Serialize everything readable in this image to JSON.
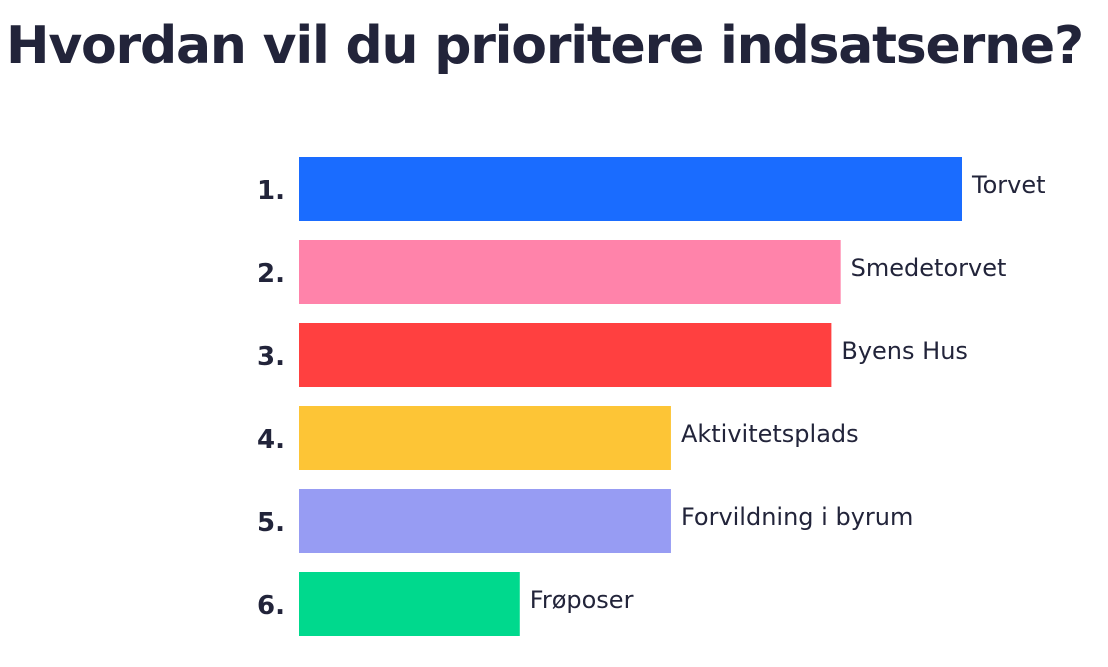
{
  "title": "Hvordan vil du prioritere indsatserne?",
  "chart_data": {
    "type": "bar",
    "orientation": "horizontal",
    "title": "Hvordan vil du prioritere indsatserne?",
    "ranks": [
      "1.",
      "2.",
      "3.",
      "4.",
      "5.",
      "6."
    ],
    "categories": [
      "Torvet",
      "Smedetorvet",
      "Byens Hus",
      "Aktivitetsplads",
      "Forvildning i byrum",
      "Frøposer"
    ],
    "values": [
      100,
      81.7,
      80.3,
      56.1,
      56.1,
      33.3
    ],
    "colors": [
      "#1a6cff",
      "#ff83aa",
      "#ff4040",
      "#fdc536",
      "#979cf3",
      "#00d98d"
    ],
    "xlim": [
      0,
      100
    ],
    "grid": false,
    "legend": "none"
  }
}
